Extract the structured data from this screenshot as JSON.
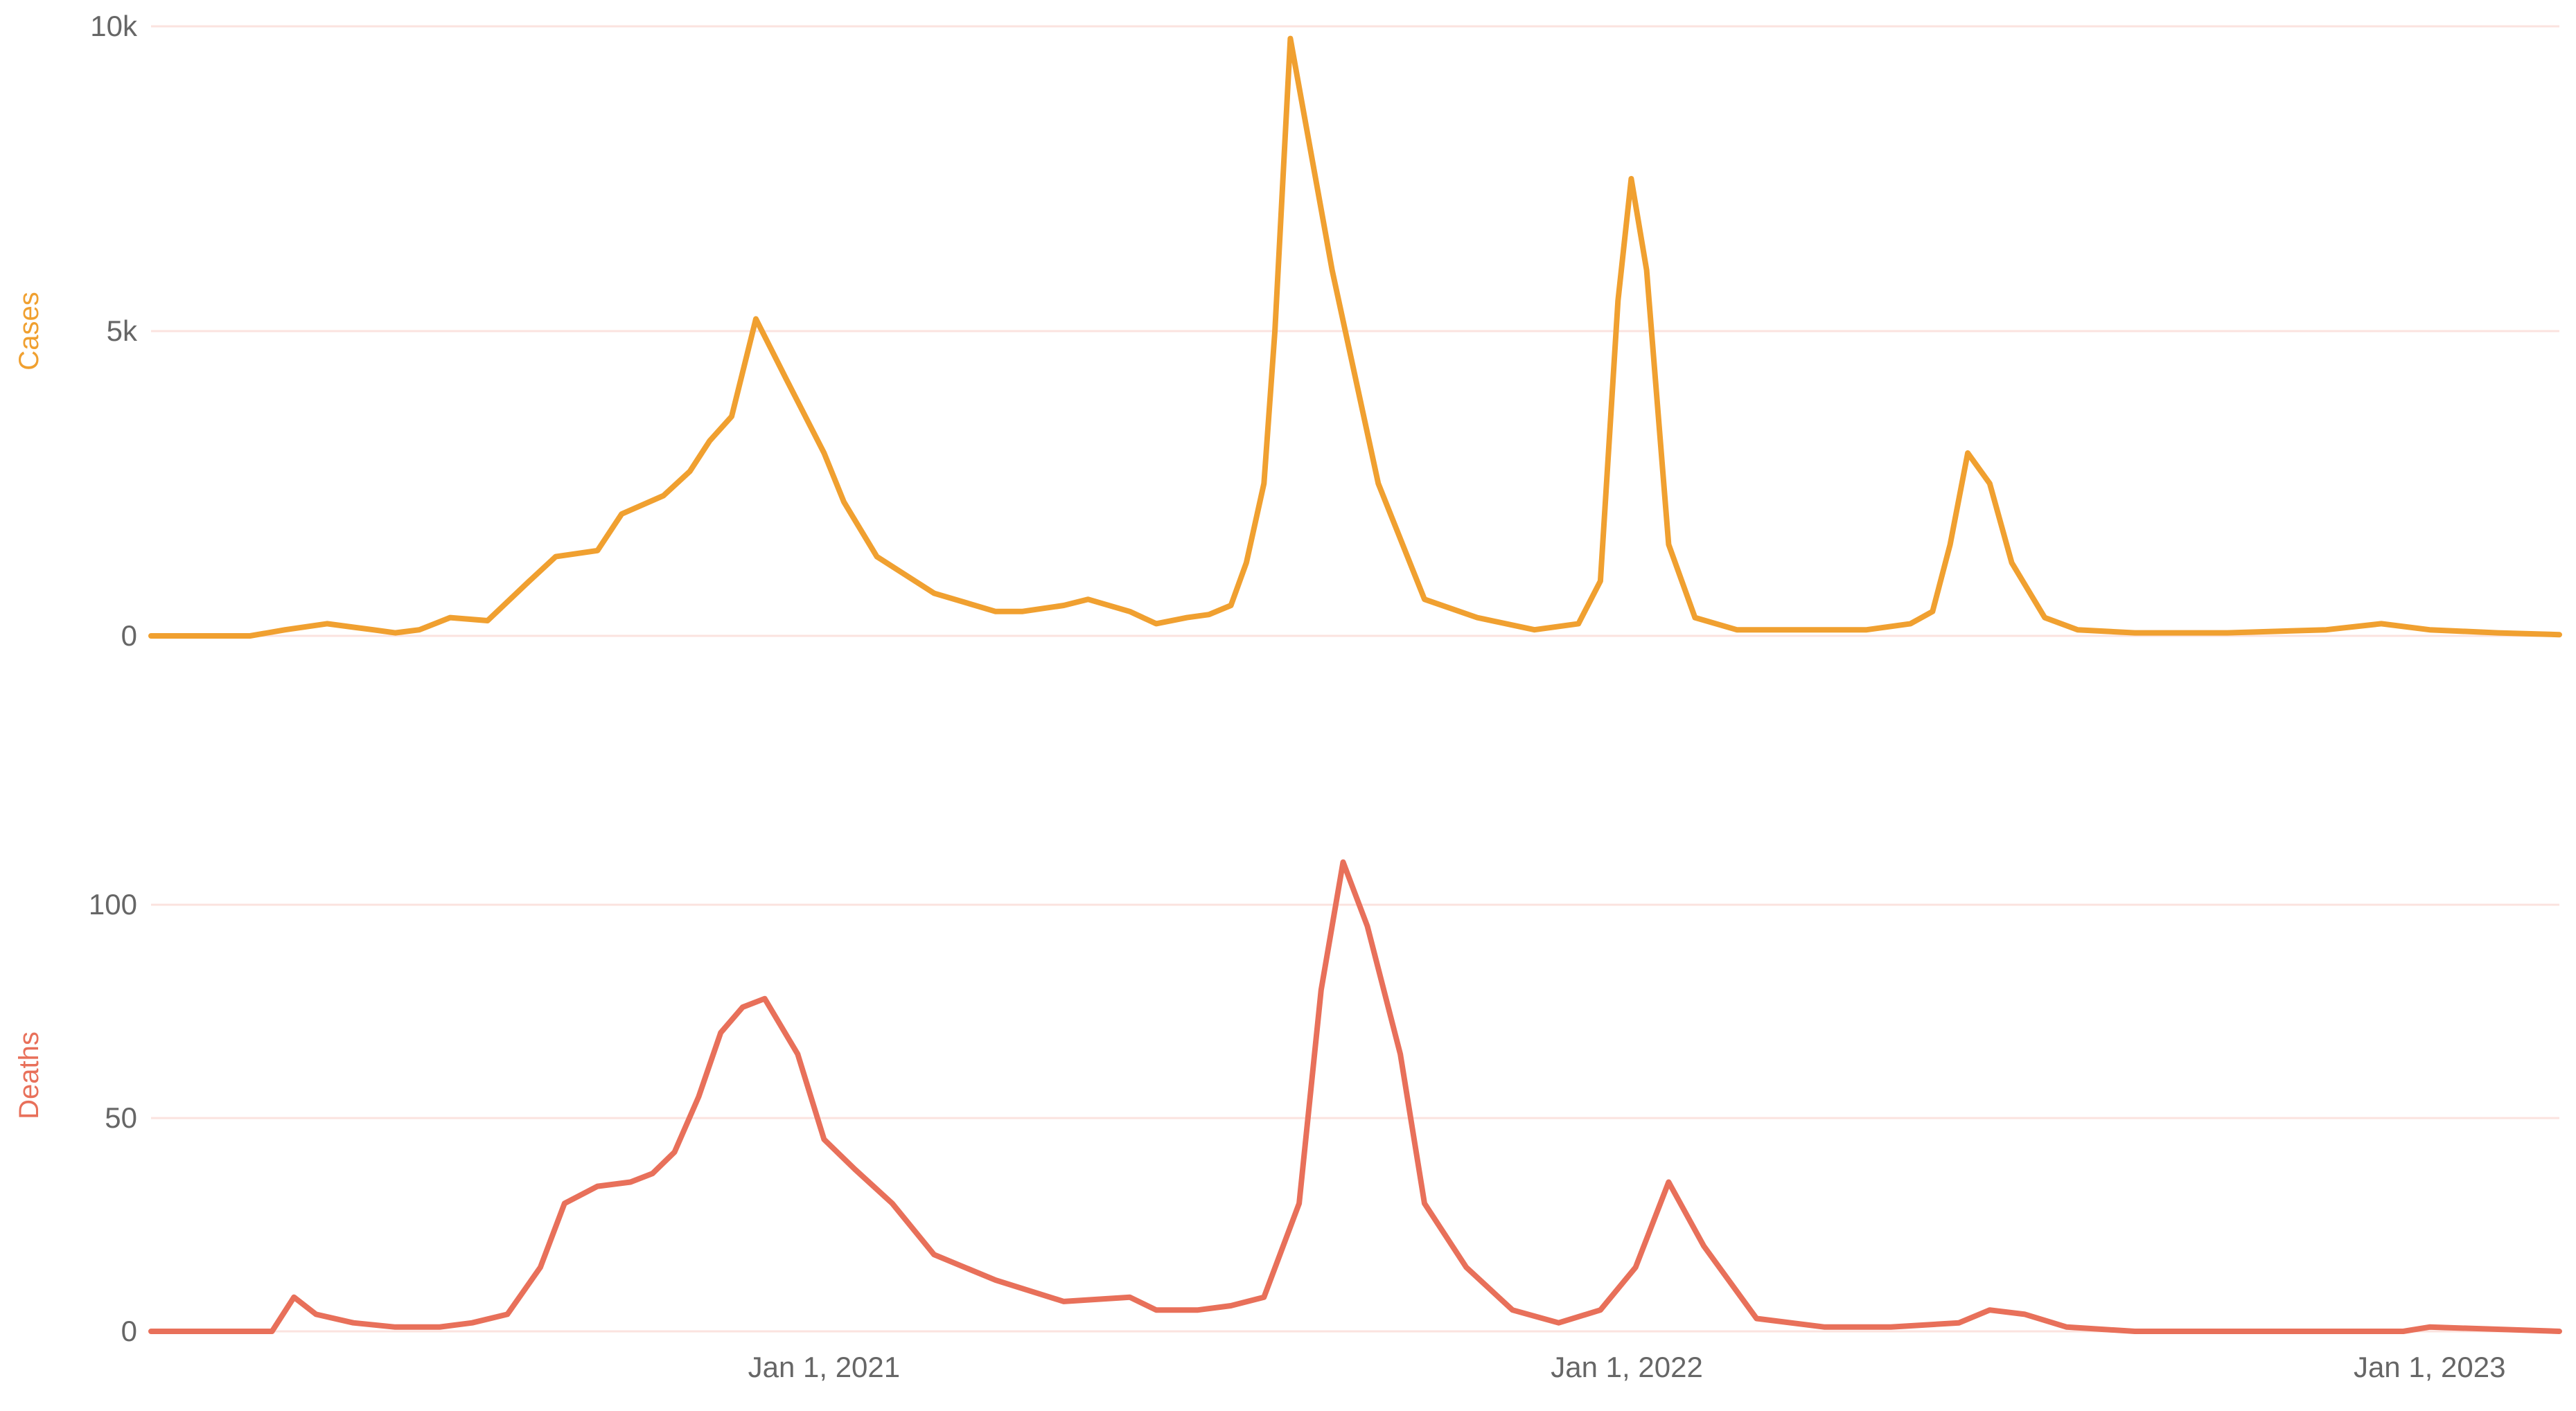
{
  "chart_data": [
    {
      "type": "line",
      "ylabel": "Cases",
      "ylim": [
        0,
        10000
      ],
      "y_ticks": [
        {
          "value": 0,
          "label": "0"
        },
        {
          "value": 5000,
          "label": "5k"
        },
        {
          "value": 10000,
          "label": "10k"
        }
      ],
      "x_ticks": [],
      "grid": true,
      "series": [
        {
          "color": "#f0a030",
          "x": [
            "2020-03-01",
            "2020-04-15",
            "2020-05-01",
            "2020-05-20",
            "2020-06-10",
            "2020-06-20",
            "2020-07-01",
            "2020-07-15",
            "2020-08-01",
            "2020-08-20",
            "2020-09-01",
            "2020-09-20",
            "2020-10-01",
            "2020-10-20",
            "2020-11-01",
            "2020-11-10",
            "2020-11-20",
            "2020-12-01",
            "2020-12-15",
            "2021-01-01",
            "2021-01-10",
            "2021-01-25",
            "2021-02-20",
            "2021-03-20",
            "2021-04-01",
            "2021-04-20",
            "2021-05-01",
            "2021-05-20",
            "2021-06-01",
            "2021-06-15",
            "2021-06-25",
            "2021-07-05",
            "2021-07-12",
            "2021-07-20",
            "2021-07-25",
            "2021-08-01",
            "2021-08-20",
            "2021-09-10",
            "2021-10-01",
            "2021-10-25",
            "2021-11-20",
            "2021-12-10",
            "2021-12-20",
            "2021-12-28",
            "2022-01-03",
            "2022-01-10",
            "2022-01-20",
            "2022-02-01",
            "2022-02-20",
            "2022-03-20",
            "2022-04-20",
            "2022-05-10",
            "2022-05-20",
            "2022-05-28",
            "2022-06-05",
            "2022-06-15",
            "2022-06-25",
            "2022-07-10",
            "2022-07-25",
            "2022-08-20",
            "2022-10-01",
            "2022-11-15",
            "2022-12-10",
            "2023-01-01",
            "2023-02-01",
            "2023-03-01"
          ],
          "values": [
            0,
            0,
            100,
            200,
            100,
            50,
            100,
            300,
            250,
            900,
            1300,
            1400,
            2000,
            2300,
            2700,
            3200,
            3600,
            5200,
            4200,
            3000,
            2200,
            1300,
            700,
            400,
            400,
            500,
            600,
            400,
            200,
            300,
            350,
            500,
            1200,
            2500,
            5000,
            9800,
            6000,
            2500,
            600,
            300,
            100,
            200,
            900,
            5500,
            7500,
            6000,
            1500,
            300,
            100,
            100,
            100,
            200,
            400,
            1500,
            3000,
            2500,
            1200,
            300,
            100,
            50,
            50,
            100,
            200,
            100,
            50,
            20
          ]
        }
      ]
    },
    {
      "type": "line",
      "ylabel": "Deaths",
      "ylim": [
        0,
        120
      ],
      "y_ticks": [
        {
          "value": 0,
          "label": "0"
        },
        {
          "value": 50,
          "label": "50"
        },
        {
          "value": 100,
          "label": "100"
        }
      ],
      "x_ticks": [
        {
          "value": "2021-01-01",
          "label": "Jan 1, 2021"
        },
        {
          "value": "2022-01-01",
          "label": "Jan 1, 2022"
        },
        {
          "value": "2023-01-01",
          "label": "Jan 1, 2023"
        }
      ],
      "grid": true,
      "series": [
        {
          "color": "#e8705a",
          "x": [
            "2020-03-01",
            "2020-04-25",
            "2020-05-05",
            "2020-05-15",
            "2020-06-01",
            "2020-06-20",
            "2020-07-10",
            "2020-07-25",
            "2020-08-10",
            "2020-08-25",
            "2020-09-05",
            "2020-09-20",
            "2020-10-05",
            "2020-10-15",
            "2020-10-25",
            "2020-11-05",
            "2020-11-15",
            "2020-11-25",
            "2020-12-05",
            "2020-12-20",
            "2021-01-01",
            "2021-01-15",
            "2021-02-01",
            "2021-02-20",
            "2021-03-20",
            "2021-04-20",
            "2021-05-20",
            "2021-06-01",
            "2021-06-20",
            "2021-07-05",
            "2021-07-20",
            "2021-08-05",
            "2021-08-15",
            "2021-08-25",
            "2021-09-05",
            "2021-09-20",
            "2021-10-01",
            "2021-10-20",
            "2021-11-10",
            "2021-12-01",
            "2021-12-20",
            "2022-01-05",
            "2022-01-20",
            "2022-02-05",
            "2022-03-01",
            "2022-04-01",
            "2022-05-01",
            "2022-06-01",
            "2022-06-15",
            "2022-07-01",
            "2022-07-20",
            "2022-08-20",
            "2022-11-01",
            "2022-12-20",
            "2023-01-01",
            "2023-03-01"
          ],
          "values": [
            0,
            0,
            8,
            4,
            2,
            1,
            1,
            2,
            4,
            15,
            30,
            34,
            35,
            37,
            42,
            55,
            70,
            76,
            78,
            65,
            45,
            38,
            30,
            18,
            12,
            7,
            8,
            5,
            5,
            6,
            8,
            30,
            80,
            110,
            95,
            65,
            30,
            15,
            5,
            2,
            5,
            15,
            35,
            20,
            3,
            1,
            1,
            2,
            5,
            4,
            1,
            0,
            0,
            0,
            1,
            0
          ]
        }
      ]
    }
  ]
}
